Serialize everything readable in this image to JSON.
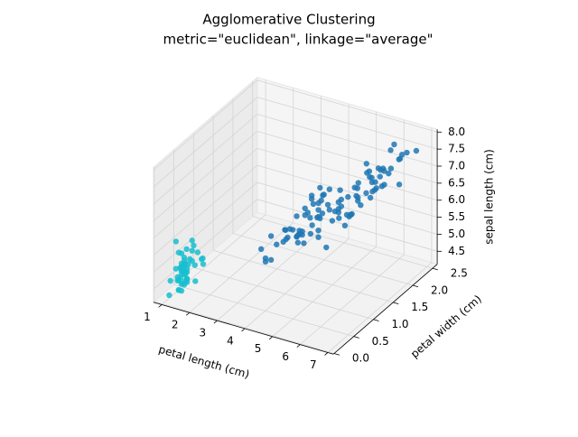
{
  "chart_data": {
    "type": "scatter3d",
    "title": "Agglomerative Clustering",
    "subtitle": "metric=\"euclidean\", linkage=\"average\"",
    "xlabel": "petal length (cm)",
    "ylabel": "petal width (cm)",
    "zlabel": "sepal length (cm)",
    "xlim": [
      0.7,
      7.2
    ],
    "ylim": [
      -0.02,
      2.62
    ],
    "zlim": [
      4.12,
      8.08
    ],
    "xticks": [
      1,
      2,
      3,
      4,
      5,
      6,
      7
    ],
    "yticks": [
      {
        "value": 0,
        "label": "0.0"
      },
      0.5,
      {
        "value": 1,
        "label": "1.0"
      },
      1.5,
      {
        "value": 2,
        "label": "2.0"
      },
      2.5
    ],
    "zticks": [
      4.5,
      {
        "value": 5,
        "label": "5.0"
      },
      5.5,
      {
        "value": 6,
        "label": "6.0"
      },
      6.5,
      {
        "value": 7,
        "label": "7.0"
      },
      7.5,
      {
        "value": 8,
        "label": "8.0"
      }
    ],
    "grid": true,
    "series": [
      {
        "color": "#17becf",
        "x": [
          1.4,
          1.4,
          1.3,
          1.5,
          1.4,
          1.7,
          1.4,
          1.5,
          1.4,
          1.5,
          1.5,
          1.6,
          1.4,
          1.1,
          1.2,
          1.5,
          1.3,
          1.4,
          1.7,
          1.5,
          1.7,
          1.5,
          1.0,
          1.7,
          1.9,
          1.6,
          1.6,
          1.5,
          1.4,
          1.6,
          1.6,
          1.5,
          1.5,
          1.4,
          1.5,
          1.2,
          1.3,
          1.4,
          1.3,
          1.5,
          1.3,
          1.3,
          1.3,
          1.6,
          1.9,
          1.4,
          1.6,
          1.4,
          1.5,
          1.4
        ],
        "y": [
          0.2,
          0.2,
          0.2,
          0.2,
          0.2,
          0.4,
          0.3,
          0.2,
          0.2,
          0.1,
          0.2,
          0.2,
          0.1,
          0.1,
          0.2,
          0.4,
          0.4,
          0.3,
          0.3,
          0.3,
          0.2,
          0.4,
          0.2,
          0.5,
          0.2,
          0.2,
          0.4,
          0.2,
          0.2,
          0.2,
          0.2,
          0.4,
          0.1,
          0.2,
          0.2,
          0.2,
          0.2,
          0.1,
          0.2,
          0.2,
          0.3,
          0.3,
          0.2,
          0.6,
          0.4,
          0.3,
          0.2,
          0.2,
          0.2,
          0.2
        ],
        "z": [
          5.1,
          4.9,
          4.7,
          4.6,
          5.0,
          5.4,
          4.6,
          5.0,
          4.4,
          4.9,
          5.4,
          4.8,
          4.8,
          4.3,
          5.8,
          5.7,
          5.4,
          5.1,
          5.7,
          5.1,
          5.4,
          5.1,
          4.6,
          5.1,
          4.8,
          5.0,
          5.0,
          5.2,
          5.2,
          4.7,
          4.8,
          5.4,
          5.2,
          5.5,
          4.9,
          5.0,
          5.5,
          4.9,
          4.4,
          5.1,
          5.0,
          4.5,
          4.4,
          5.0,
          5.1,
          4.8,
          5.1,
          4.6,
          5.3,
          5.0
        ]
      },
      {
        "color": "#1f77b4",
        "x": [
          4.7,
          4.5,
          4.9,
          4.0,
          4.6,
          4.5,
          4.7,
          3.3,
          4.6,
          3.9,
          3.5,
          4.2,
          4.0,
          4.7,
          3.6,
          4.4,
          4.5,
          4.1,
          4.5,
          3.9,
          4.8,
          4.0,
          4.9,
          4.7,
          4.3,
          4.4,
          4.8,
          5.0,
          4.5,
          3.5,
          3.8,
          3.7,
          3.9,
          5.1,
          4.5,
          4.5,
          4.7,
          4.4,
          4.1,
          4.0,
          4.4,
          4.6,
          4.0,
          3.3,
          4.2,
          4.2,
          4.2,
          4.3,
          3.0,
          4.1,
          6.0,
          5.1,
          5.9,
          5.6,
          5.8,
          6.6,
          4.5,
          6.3,
          5.8,
          6.1,
          5.1,
          5.3,
          5.5,
          5.0,
          5.1,
          5.3,
          5.5,
          6.7,
          6.9,
          5.0,
          5.7,
          4.9,
          6.7,
          4.9,
          5.7,
          6.0,
          4.8,
          4.9,
          5.6,
          5.8,
          6.1,
          6.4,
          5.6,
          5.1,
          5.6,
          6.1,
          5.6,
          5.5,
          4.8,
          5.4,
          5.6,
          5.1,
          5.1,
          5.9,
          5.7,
          5.2,
          5.0,
          5.2,
          5.4,
          5.1
        ],
        "y": [
          1.4,
          1.5,
          1.5,
          1.3,
          1.5,
          1.3,
          1.6,
          1.0,
          1.3,
          1.4,
          1.0,
          1.5,
          1.0,
          1.4,
          1.3,
          1.4,
          1.5,
          1.0,
          1.5,
          1.1,
          1.8,
          1.3,
          1.5,
          1.2,
          1.3,
          1.4,
          1.4,
          1.7,
          1.5,
          1.0,
          1.1,
          1.0,
          1.2,
          1.6,
          1.5,
          1.6,
          1.5,
          1.3,
          1.3,
          1.3,
          1.2,
          1.4,
          1.2,
          1.0,
          1.3,
          1.2,
          1.3,
          1.3,
          1.1,
          1.3,
          2.5,
          1.9,
          2.1,
          1.8,
          2.2,
          2.1,
          1.7,
          1.8,
          1.8,
          2.5,
          2.0,
          1.9,
          2.1,
          2.0,
          2.4,
          2.3,
          1.8,
          2.2,
          2.3,
          1.5,
          2.3,
          2.0,
          2.0,
          1.8,
          2.1,
          1.8,
          1.8,
          1.8,
          2.1,
          1.6,
          1.9,
          2.0,
          2.2,
          1.5,
          1.4,
          2.3,
          2.4,
          1.8,
          1.8,
          2.1,
          2.4,
          2.3,
          1.9,
          2.3,
          2.5,
          2.3,
          1.9,
          2.0,
          2.3,
          1.8
        ],
        "z": [
          7.0,
          6.4,
          6.9,
          5.5,
          6.5,
          5.7,
          6.3,
          4.9,
          6.6,
          5.2,
          5.0,
          5.9,
          6.0,
          6.1,
          5.6,
          6.7,
          5.6,
          5.8,
          6.2,
          5.6,
          5.9,
          6.1,
          6.3,
          6.1,
          6.4,
          6.6,
          6.8,
          6.7,
          6.0,
          5.7,
          5.5,
          5.5,
          5.8,
          6.0,
          5.4,
          6.0,
          6.7,
          6.3,
          5.6,
          5.5,
          5.5,
          6.1,
          5.8,
          5.0,
          5.6,
          5.7,
          5.7,
          6.2,
          5.1,
          5.7,
          6.3,
          5.8,
          7.1,
          6.3,
          6.5,
          7.6,
          4.9,
          7.3,
          6.7,
          7.2,
          6.5,
          6.4,
          6.8,
          5.7,
          5.8,
          6.4,
          6.5,
          7.7,
          7.7,
          6.0,
          6.9,
          5.6,
          7.7,
          6.3,
          6.7,
          7.2,
          6.2,
          6.1,
          6.4,
          7.2,
          7.4,
          7.9,
          6.4,
          6.3,
          6.1,
          7.7,
          6.3,
          6.4,
          6.0,
          6.9,
          6.7,
          6.9,
          5.8,
          6.8,
          6.7,
          6.7,
          6.3,
          6.5,
          6.2,
          5.9
        ]
      }
    ]
  }
}
